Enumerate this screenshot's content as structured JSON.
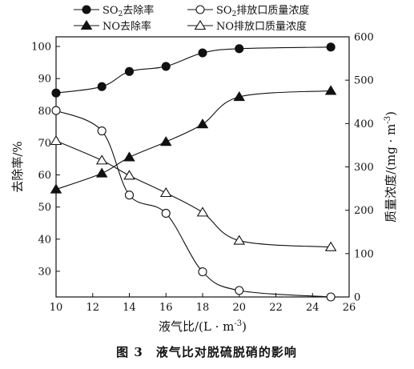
{
  "chart_data": {
    "type": "line",
    "caption": "图 3　液气比对脱硫脱硝的影响",
    "xlabel": "液气比/(L · m",
    "xlabel_sup": "-3",
    "xlabel_tail": ")",
    "ylabel_left": "去除率/%",
    "ylabel_right": "质量浓度/(mg · m",
    "ylabel_right_sup": "-3",
    "ylabel_right_tail": ")",
    "xlim": [
      10,
      26
    ],
    "x_ticks": [
      10,
      12,
      14,
      16,
      18,
      20,
      22,
      24,
      26
    ],
    "ylim_left": [
      22,
      103
    ],
    "y_ticks_left": [
      30,
      40,
      50,
      60,
      70,
      80,
      90,
      100
    ],
    "ylim_right": [
      0,
      600
    ],
    "y_ticks_right": [
      0,
      100,
      200,
      300,
      400,
      500,
      600
    ],
    "legend_placement": "top",
    "x": [
      10,
      12.5,
      14,
      16,
      18,
      20,
      25
    ],
    "series": [
      {
        "name_main": "SO",
        "name_sub": "2",
        "name_tail": "去除率",
        "axis": "left",
        "marker": "circle",
        "filled": true,
        "values": [
          85.5,
          87.5,
          92.2,
          93.8,
          98.0,
          99.3,
          99.8
        ]
      },
      {
        "name_main": "SO",
        "name_sub": "2",
        "name_tail": "排放口质量浓度",
        "axis": "right",
        "marker": "circle",
        "filled": false,
        "values": [
          430,
          383,
          235,
          193,
          58,
          15,
          0
        ]
      },
      {
        "name_main": "NO去除率",
        "name_sub": "",
        "name_tail": "",
        "axis": "left",
        "marker": "triangle",
        "filled": true,
        "values": [
          55.5,
          60.5,
          65.5,
          70.3,
          75.8,
          84.3,
          86.2
        ]
      },
      {
        "name_main": "NO排放口质量浓度",
        "name_sub": "",
        "name_tail": "",
        "axis": "right",
        "marker": "triangle",
        "filled": false,
        "values": [
          360,
          315,
          280,
          240,
          195,
          130,
          115
        ]
      }
    ],
    "colors": {
      "line": "#111111",
      "marker_fill": "#111111",
      "marker_hollow": "#ffffff"
    }
  }
}
